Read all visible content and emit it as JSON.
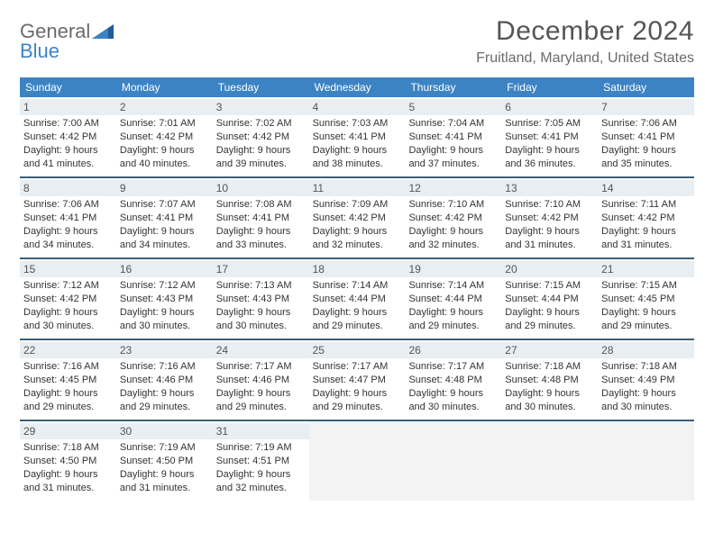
{
  "brand": {
    "line1": "General",
    "line2": "Blue"
  },
  "title": "December 2024",
  "location": "Fruitland, Maryland, United States",
  "colors": {
    "header_bg": "#3c83c4",
    "row_border": "#3c5f7a",
    "daynum_bg": "#e8eef2",
    "empty_bg": "#f3f3f3",
    "text": "#333333",
    "muted": "#6b6b6b",
    "brand_blue": "#3c83c4",
    "white": "#ffffff"
  },
  "days_of_week": [
    "Sunday",
    "Monday",
    "Tuesday",
    "Wednesday",
    "Thursday",
    "Friday",
    "Saturday"
  ],
  "weeks": [
    [
      {
        "n": "1",
        "sr": "Sunrise: 7:00 AM",
        "ss": "Sunset: 4:42 PM",
        "dl1": "Daylight: 9 hours",
        "dl2": "and 41 minutes."
      },
      {
        "n": "2",
        "sr": "Sunrise: 7:01 AM",
        "ss": "Sunset: 4:42 PM",
        "dl1": "Daylight: 9 hours",
        "dl2": "and 40 minutes."
      },
      {
        "n": "3",
        "sr": "Sunrise: 7:02 AM",
        "ss": "Sunset: 4:42 PM",
        "dl1": "Daylight: 9 hours",
        "dl2": "and 39 minutes."
      },
      {
        "n": "4",
        "sr": "Sunrise: 7:03 AM",
        "ss": "Sunset: 4:41 PM",
        "dl1": "Daylight: 9 hours",
        "dl2": "and 38 minutes."
      },
      {
        "n": "5",
        "sr": "Sunrise: 7:04 AM",
        "ss": "Sunset: 4:41 PM",
        "dl1": "Daylight: 9 hours",
        "dl2": "and 37 minutes."
      },
      {
        "n": "6",
        "sr": "Sunrise: 7:05 AM",
        "ss": "Sunset: 4:41 PM",
        "dl1": "Daylight: 9 hours",
        "dl2": "and 36 minutes."
      },
      {
        "n": "7",
        "sr": "Sunrise: 7:06 AM",
        "ss": "Sunset: 4:41 PM",
        "dl1": "Daylight: 9 hours",
        "dl2": "and 35 minutes."
      }
    ],
    [
      {
        "n": "8",
        "sr": "Sunrise: 7:06 AM",
        "ss": "Sunset: 4:41 PM",
        "dl1": "Daylight: 9 hours",
        "dl2": "and 34 minutes."
      },
      {
        "n": "9",
        "sr": "Sunrise: 7:07 AM",
        "ss": "Sunset: 4:41 PM",
        "dl1": "Daylight: 9 hours",
        "dl2": "and 34 minutes."
      },
      {
        "n": "10",
        "sr": "Sunrise: 7:08 AM",
        "ss": "Sunset: 4:41 PM",
        "dl1": "Daylight: 9 hours",
        "dl2": "and 33 minutes."
      },
      {
        "n": "11",
        "sr": "Sunrise: 7:09 AM",
        "ss": "Sunset: 4:42 PM",
        "dl1": "Daylight: 9 hours",
        "dl2": "and 32 minutes."
      },
      {
        "n": "12",
        "sr": "Sunrise: 7:10 AM",
        "ss": "Sunset: 4:42 PM",
        "dl1": "Daylight: 9 hours",
        "dl2": "and 32 minutes."
      },
      {
        "n": "13",
        "sr": "Sunrise: 7:10 AM",
        "ss": "Sunset: 4:42 PM",
        "dl1": "Daylight: 9 hours",
        "dl2": "and 31 minutes."
      },
      {
        "n": "14",
        "sr": "Sunrise: 7:11 AM",
        "ss": "Sunset: 4:42 PM",
        "dl1": "Daylight: 9 hours",
        "dl2": "and 31 minutes."
      }
    ],
    [
      {
        "n": "15",
        "sr": "Sunrise: 7:12 AM",
        "ss": "Sunset: 4:42 PM",
        "dl1": "Daylight: 9 hours",
        "dl2": "and 30 minutes."
      },
      {
        "n": "16",
        "sr": "Sunrise: 7:12 AM",
        "ss": "Sunset: 4:43 PM",
        "dl1": "Daylight: 9 hours",
        "dl2": "and 30 minutes."
      },
      {
        "n": "17",
        "sr": "Sunrise: 7:13 AM",
        "ss": "Sunset: 4:43 PM",
        "dl1": "Daylight: 9 hours",
        "dl2": "and 30 minutes."
      },
      {
        "n": "18",
        "sr": "Sunrise: 7:14 AM",
        "ss": "Sunset: 4:44 PM",
        "dl1": "Daylight: 9 hours",
        "dl2": "and 29 minutes."
      },
      {
        "n": "19",
        "sr": "Sunrise: 7:14 AM",
        "ss": "Sunset: 4:44 PM",
        "dl1": "Daylight: 9 hours",
        "dl2": "and 29 minutes."
      },
      {
        "n": "20",
        "sr": "Sunrise: 7:15 AM",
        "ss": "Sunset: 4:44 PM",
        "dl1": "Daylight: 9 hours",
        "dl2": "and 29 minutes."
      },
      {
        "n": "21",
        "sr": "Sunrise: 7:15 AM",
        "ss": "Sunset: 4:45 PM",
        "dl1": "Daylight: 9 hours",
        "dl2": "and 29 minutes."
      }
    ],
    [
      {
        "n": "22",
        "sr": "Sunrise: 7:16 AM",
        "ss": "Sunset: 4:45 PM",
        "dl1": "Daylight: 9 hours",
        "dl2": "and 29 minutes."
      },
      {
        "n": "23",
        "sr": "Sunrise: 7:16 AM",
        "ss": "Sunset: 4:46 PM",
        "dl1": "Daylight: 9 hours",
        "dl2": "and 29 minutes."
      },
      {
        "n": "24",
        "sr": "Sunrise: 7:17 AM",
        "ss": "Sunset: 4:46 PM",
        "dl1": "Daylight: 9 hours",
        "dl2": "and 29 minutes."
      },
      {
        "n": "25",
        "sr": "Sunrise: 7:17 AM",
        "ss": "Sunset: 4:47 PM",
        "dl1": "Daylight: 9 hours",
        "dl2": "and 29 minutes."
      },
      {
        "n": "26",
        "sr": "Sunrise: 7:17 AM",
        "ss": "Sunset: 4:48 PM",
        "dl1": "Daylight: 9 hours",
        "dl2": "and 30 minutes."
      },
      {
        "n": "27",
        "sr": "Sunrise: 7:18 AM",
        "ss": "Sunset: 4:48 PM",
        "dl1": "Daylight: 9 hours",
        "dl2": "and 30 minutes."
      },
      {
        "n": "28",
        "sr": "Sunrise: 7:18 AM",
        "ss": "Sunset: 4:49 PM",
        "dl1": "Daylight: 9 hours",
        "dl2": "and 30 minutes."
      }
    ],
    [
      {
        "n": "29",
        "sr": "Sunrise: 7:18 AM",
        "ss": "Sunset: 4:50 PM",
        "dl1": "Daylight: 9 hours",
        "dl2": "and 31 minutes."
      },
      {
        "n": "30",
        "sr": "Sunrise: 7:19 AM",
        "ss": "Sunset: 4:50 PM",
        "dl1": "Daylight: 9 hours",
        "dl2": "and 31 minutes."
      },
      {
        "n": "31",
        "sr": "Sunrise: 7:19 AM",
        "ss": "Sunset: 4:51 PM",
        "dl1": "Daylight: 9 hours",
        "dl2": "and 32 minutes."
      },
      null,
      null,
      null,
      null
    ]
  ]
}
